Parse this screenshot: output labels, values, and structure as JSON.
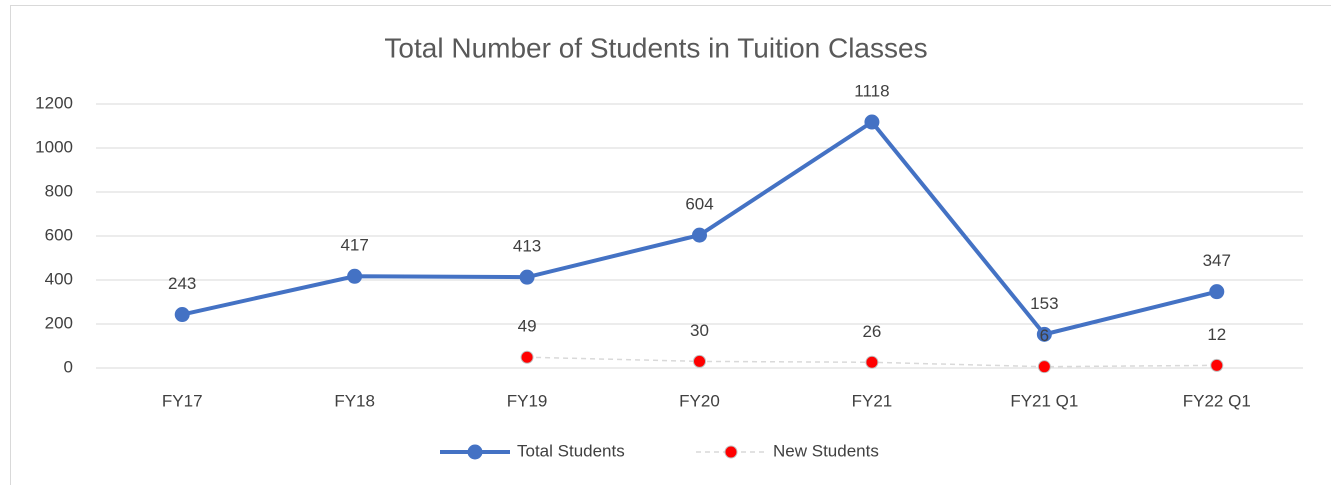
{
  "chart_data": {
    "type": "line",
    "title": "Total Number of Students in Tuition Classes",
    "categories": [
      "FY17",
      "FY18",
      "FY19",
      "FY20",
      "FY21",
      "FY21 Q1",
      "FY22 Q1"
    ],
    "series": [
      {
        "name": "Total Students",
        "color": "#4472c4",
        "values": [
          243,
          417,
          413,
          604,
          1118,
          153,
          347
        ]
      },
      {
        "name": "New Students",
        "color": "#ff0000",
        "values": [
          null,
          null,
          49,
          30,
          26,
          6,
          12
        ]
      }
    ],
    "ylim": [
      0,
      1200
    ],
    "yticks": [
      0,
      200,
      400,
      600,
      800,
      1000,
      1200
    ],
    "grid": true,
    "legend": "bottom"
  }
}
